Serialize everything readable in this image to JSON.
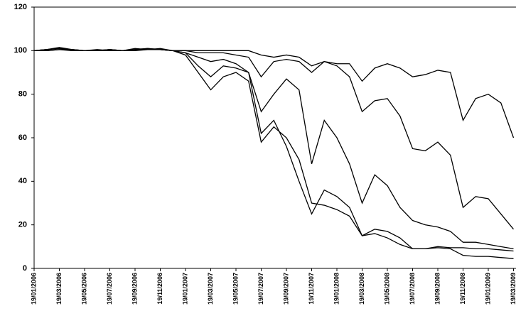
{
  "chart_data": {
    "type": "line",
    "categories": [
      "19/01/2006",
      null,
      "19/03/2006",
      null,
      "19/05/2006",
      null,
      "19/07/2006",
      null,
      "19/09/2006",
      null,
      "19/11/2006",
      null,
      "19/01/2007",
      null,
      "19/03/2007",
      null,
      "19/05/2007",
      null,
      "19/07/2007",
      null,
      "19/09/2007",
      null,
      "19/11/2007",
      null,
      "19/01/2008",
      null,
      "19/03/2008",
      null,
      "19/05/2008",
      null,
      "19/07/2008",
      null,
      "19/09/2008",
      null,
      "19/11/2008",
      null,
      "19/01/2009",
      null,
      "19/03/2009"
    ],
    "series": [
      {
        "color": "#000000",
        "values": [
          100,
          100.5,
          101,
          100.5,
          100,
          100,
          100.5,
          100,
          100.5,
          101,
          100.5,
          100,
          100,
          100,
          100,
          100,
          100,
          100,
          98,
          97,
          98,
          97,
          93,
          95,
          94,
          94,
          86,
          92,
          94,
          92,
          88,
          89,
          91,
          90,
          68,
          78,
          80,
          76,
          60
        ]
      },
      {
        "color": "#000000",
        "values": [
          100,
          100.5,
          101.5,
          100.5,
          100,
          100,
          100.5,
          100,
          100.5,
          101,
          100.5,
          100,
          100,
          99,
          99,
          99,
          98,
          97,
          88,
          95,
          96,
          95,
          90,
          95,
          93,
          88,
          72,
          77,
          78,
          70,
          55,
          54,
          58,
          52,
          28,
          33,
          32,
          25,
          18
        ]
      },
      {
        "color": "#000000",
        "values": [
          100,
          100,
          100.5,
          100.5,
          100,
          100,
          100,
          100,
          100,
          100.5,
          100.5,
          100,
          99,
          97,
          95,
          96,
          94,
          90,
          72,
          80,
          87,
          82,
          48,
          68,
          60,
          48,
          30,
          43,
          38,
          28,
          22,
          20,
          19,
          17,
          12,
          12,
          11,
          10,
          9
        ]
      },
      {
        "color": "#000000",
        "values": [
          100,
          100.5,
          101,
          100,
          100,
          100.5,
          100,
          100,
          101,
          100.5,
          100.5,
          100,
          98,
          90,
          82,
          88,
          90,
          86,
          58,
          65,
          60,
          50,
          30,
          29,
          27,
          24,
          15,
          18,
          17,
          14,
          9,
          9,
          9.5,
          9,
          6,
          5.5,
          5.5,
          5,
          4.5
        ]
      },
      {
        "color": "#000000",
        "values": [
          100,
          100,
          100.5,
          100,
          100,
          100,
          100.5,
          100,
          100.5,
          100.5,
          101,
          100,
          99,
          93,
          88,
          93,
          92,
          90,
          62,
          68,
          56,
          40,
          25,
          36,
          33,
          28,
          15,
          16,
          14,
          11,
          9,
          9,
          10,
          9.5,
          9.5,
          9,
          9,
          8.5,
          8
        ]
      }
    ],
    "ylim": [
      0,
      120
    ],
    "yticks": [
      0,
      20,
      40,
      60,
      80,
      100,
      120
    ],
    "grid": false
  }
}
